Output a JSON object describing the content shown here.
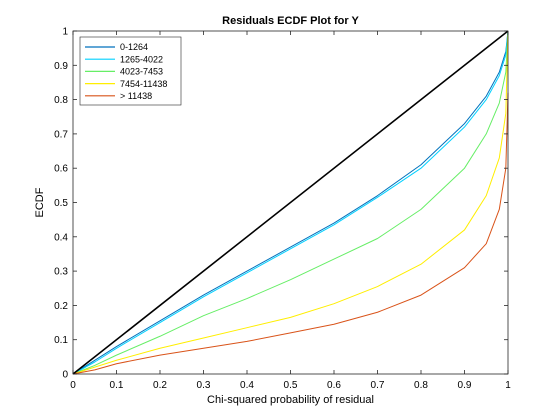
{
  "chart_data": {
    "type": "line",
    "title": "Residuals ECDF Plot for Y",
    "xlabel": "Chi-squared probability of residual",
    "ylabel": "ECDF",
    "xlim": [
      0,
      1
    ],
    "ylim": [
      0,
      1
    ],
    "x_ticks": [
      0,
      0.1,
      0.2,
      0.3,
      0.4,
      0.5,
      0.6,
      0.7,
      0.8,
      0.9,
      1
    ],
    "y_ticks": [
      0,
      0.1,
      0.2,
      0.3,
      0.4,
      0.5,
      0.6,
      0.7,
      0.8,
      0.9,
      1
    ],
    "grid": false,
    "legend_position": "top-left",
    "reference_line": {
      "color": "#000000",
      "points": [
        [
          0,
          0
        ],
        [
          1,
          1
        ]
      ]
    },
    "series": [
      {
        "name": "0-1264",
        "color": "#0072bd",
        "points": [
          [
            0,
            0
          ],
          [
            0.05,
            0.04
          ],
          [
            0.1,
            0.08
          ],
          [
            0.2,
            0.155
          ],
          [
            0.3,
            0.23
          ],
          [
            0.4,
            0.3
          ],
          [
            0.5,
            0.37
          ],
          [
            0.6,
            0.44
          ],
          [
            0.7,
            0.52
          ],
          [
            0.8,
            0.61
          ],
          [
            0.9,
            0.73
          ],
          [
            0.95,
            0.81
          ],
          [
            0.98,
            0.88
          ],
          [
            0.995,
            0.94
          ],
          [
            1,
            1
          ]
        ]
      },
      {
        "name": "1265-4022",
        "color": "#00d0ff",
        "points": [
          [
            0,
            0
          ],
          [
            0.05,
            0.035
          ],
          [
            0.1,
            0.075
          ],
          [
            0.2,
            0.15
          ],
          [
            0.3,
            0.225
          ],
          [
            0.4,
            0.295
          ],
          [
            0.5,
            0.365
          ],
          [
            0.6,
            0.435
          ],
          [
            0.7,
            0.515
          ],
          [
            0.8,
            0.6
          ],
          [
            0.9,
            0.72
          ],
          [
            0.95,
            0.8
          ],
          [
            0.98,
            0.87
          ],
          [
            0.995,
            0.93
          ],
          [
            1,
            1
          ]
        ]
      },
      {
        "name": "4023-7453",
        "color": "#66ee66",
        "points": [
          [
            0,
            0
          ],
          [
            0.05,
            0.025
          ],
          [
            0.1,
            0.055
          ],
          [
            0.2,
            0.11
          ],
          [
            0.3,
            0.17
          ],
          [
            0.4,
            0.22
          ],
          [
            0.5,
            0.275
          ],
          [
            0.6,
            0.335
          ],
          [
            0.7,
            0.395
          ],
          [
            0.8,
            0.48
          ],
          [
            0.9,
            0.6
          ],
          [
            0.95,
            0.7
          ],
          [
            0.98,
            0.79
          ],
          [
            0.995,
            0.88
          ],
          [
            1,
            1
          ]
        ]
      },
      {
        "name": "7454-11438",
        "color": "#ffee00",
        "points": [
          [
            0,
            0
          ],
          [
            0.05,
            0.02
          ],
          [
            0.1,
            0.04
          ],
          [
            0.2,
            0.075
          ],
          [
            0.3,
            0.105
          ],
          [
            0.4,
            0.135
          ],
          [
            0.5,
            0.165
          ],
          [
            0.6,
            0.205
          ],
          [
            0.7,
            0.255
          ],
          [
            0.8,
            0.32
          ],
          [
            0.9,
            0.42
          ],
          [
            0.95,
            0.52
          ],
          [
            0.98,
            0.63
          ],
          [
            0.995,
            0.76
          ],
          [
            1,
            1
          ]
        ]
      },
      {
        "name": "> 11438",
        "color": "#d95319",
        "points": [
          [
            0,
            0
          ],
          [
            0.05,
            0.012
          ],
          [
            0.1,
            0.03
          ],
          [
            0.2,
            0.055
          ],
          [
            0.3,
            0.075
          ],
          [
            0.4,
            0.095
          ],
          [
            0.5,
            0.12
          ],
          [
            0.6,
            0.145
          ],
          [
            0.7,
            0.18
          ],
          [
            0.8,
            0.23
          ],
          [
            0.9,
            0.31
          ],
          [
            0.95,
            0.38
          ],
          [
            0.98,
            0.48
          ],
          [
            0.995,
            0.6
          ],
          [
            1,
            0.82
          ]
        ]
      }
    ]
  }
}
